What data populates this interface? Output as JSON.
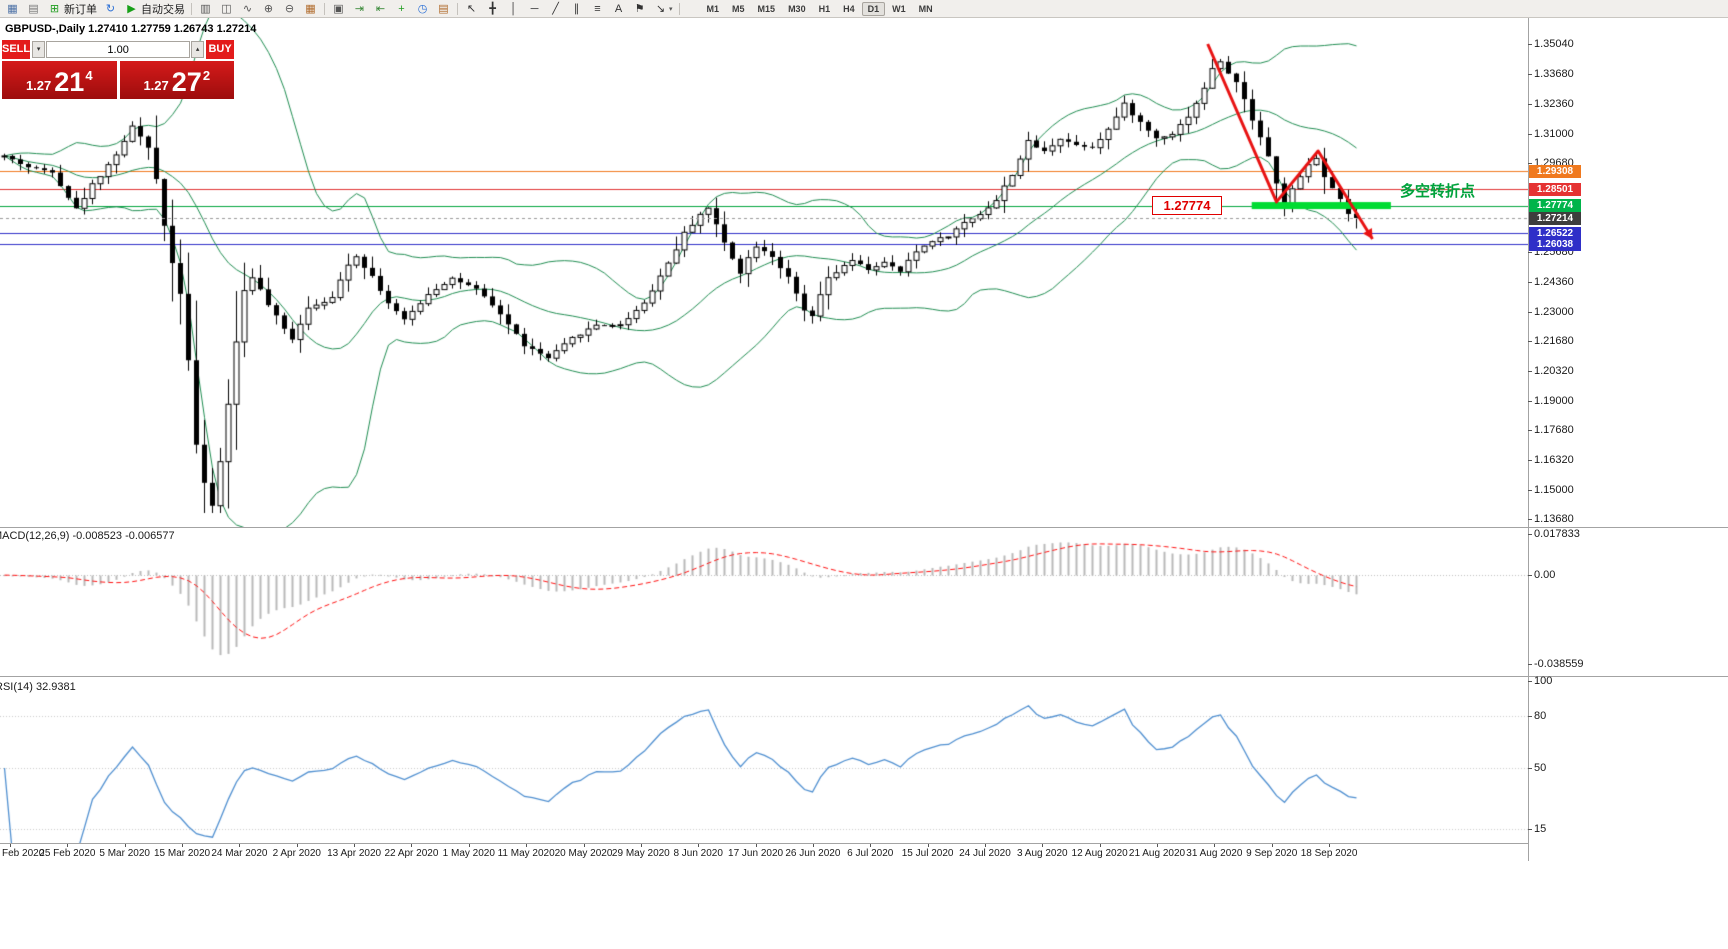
{
  "app": {
    "title": "MetaTrader 4"
  },
  "toolbar": {
    "items": [
      {
        "name": "new-chart-icon",
        "glyph": "▦",
        "color": "#4a6fa5"
      },
      {
        "name": "profiles-icon",
        "glyph": "▤",
        "color": "#777777"
      },
      {
        "name": "new-order-button",
        "glyph": "⊞",
        "color": "#1f9d1f",
        "label": "新订单"
      },
      {
        "name": "sync-icon",
        "glyph": "↻",
        "color": "#2a6fd6"
      },
      {
        "name": "auto-trading-button",
        "glyph": "▶",
        "color": "#18a018",
        "label": "自动交易"
      },
      {
        "name": "separator"
      },
      {
        "name": "bar-chart-icon",
        "glyph": "▥",
        "color": "#555555"
      },
      {
        "name": "candlestick-chart-icon",
        "glyph": "◫",
        "color": "#555555"
      },
      {
        "name": "line-chart-icon",
        "glyph": "∿",
        "color": "#555555"
      },
      {
        "name": "zoom-in-icon",
        "glyph": "⊕",
        "color": "#555555"
      },
      {
        "name": "zoom-out-icon",
        "glyph": "⊖",
        "color": "#555555"
      },
      {
        "name": "tile-windows-icon",
        "glyph": "▦",
        "color": "#b06a2a"
      },
      {
        "name": "separator"
      },
      {
        "name": "cascade-windows-icon",
        "glyph": "▣",
        "color": "#555555"
      },
      {
        "name": "auto-scroll-icon",
        "glyph": "⇥",
        "color": "#3a8a3a"
      },
      {
        "name": "chart-shift-icon",
        "glyph": "⇤",
        "color": "#3a8a3a"
      },
      {
        "name": "add-indicator-icon",
        "glyph": "+",
        "color": "#1f9d1f"
      },
      {
        "name": "periods-icon",
        "glyph": "◷",
        "color": "#2a6fd6"
      },
      {
        "name": "templates-icon",
        "glyph": "▤",
        "color": "#b06a2a"
      },
      {
        "name": "separator"
      },
      {
        "name": "cursor-icon",
        "glyph": "↖",
        "color": "#333333"
      },
      {
        "name": "crosshair-icon",
        "glyph": "╋",
        "color": "#333333"
      },
      {
        "name": "vertical-line-icon",
        "glyph": "│",
        "color": "#333333"
      },
      {
        "name": "horizontal-line-icon",
        "glyph": "─",
        "color": "#333333"
      },
      {
        "name": "trendline-icon",
        "glyph": "╱",
        "color": "#333333"
      },
      {
        "name": "channel-icon",
        "glyph": "∥",
        "color": "#333333"
      },
      {
        "name": "fibonacci-icon",
        "glyph": "≡",
        "color": "#333333"
      },
      {
        "name": "text-icon",
        "glyph": "A",
        "color": "#333333"
      },
      {
        "name": "label-icon",
        "glyph": "⚑",
        "color": "#333333"
      },
      {
        "name": "shapes-dropdown",
        "glyph": "↘",
        "caret": "▾",
        "color": "#333333"
      },
      {
        "name": "separator"
      }
    ],
    "timeframes": [
      "M1",
      "M5",
      "M15",
      "M30",
      "H1",
      "H4",
      "D1",
      "W1",
      "MN"
    ],
    "active_timeframe": "D1"
  },
  "chart": {
    "header": "GBPUSD-,Daily 1.27410 1.27759 1.26743 1.27214",
    "symbol": "GBPUSD-,Daily",
    "open": "1.27410",
    "high": "1.27759",
    "low": "1.26743",
    "close": "1.27214"
  },
  "trade_panel": {
    "sell_label": "SELL",
    "buy_label": "BUY",
    "volume": "1.00",
    "spin_down": "▾",
    "spin_up": "▴",
    "sell_price_main": "1.27",
    "sell_price_big": "21",
    "sell_price_sup": "4",
    "buy_price_main": "1.27",
    "buy_price_big": "27",
    "buy_price_sup": "2"
  },
  "price_axis": {
    "max": 1.3504,
    "min": 1.1368,
    "labels": [
      "1.35040",
      "1.33680",
      "1.32360",
      "1.31000",
      "1.29680",
      "1.25680",
      "1.24360",
      "1.23000",
      "1.21680",
      "1.20320",
      "1.19000",
      "1.17680",
      "1.16320",
      "1.15000",
      "1.13680"
    ],
    "tags": [
      {
        "value": "1.29308",
        "color": "#f0791e"
      },
      {
        "value": "1.28501",
        "color": "#e53333"
      },
      {
        "value": "1.27774",
        "color": "#00b44a"
      },
      {
        "value": "1.27214",
        "color": "#3d3d3d"
      },
      {
        "value": "1.26522",
        "color": "#2f2fc8"
      },
      {
        "value": "1.26038",
        "color": "#2f2fc8"
      }
    ]
  },
  "hlines": [
    {
      "price": 1.29308,
      "color": "#f0791e"
    },
    {
      "price": 1.28501,
      "color": "#e03232"
    },
    {
      "price": 1.27774,
      "color": "#00a53c"
    },
    {
      "price": 1.26522,
      "color": "#2f2fc8"
    },
    {
      "price": 1.26038,
      "color": "#2f2fc8"
    }
  ],
  "bid_line": {
    "price": 1.27214,
    "color": "#9a9a9a",
    "style": "dashed"
  },
  "annotations": {
    "price_label": "1.27774",
    "turning_point_text": "多空转折点",
    "highlight": {
      "bar1": 155.9,
      "bar2": 173.3,
      "price": 1.27774,
      "color": "#00dc32",
      "thickness": 7
    },
    "trend_arrow": {
      "color": "#e81212",
      "width": 3,
      "points": [
        [
          150.4,
          1.3504
        ],
        [
          159,
          1.2794
        ],
        [
          164.2,
          1.3023
        ],
        [
          171,
          1.2627
        ]
      ]
    }
  },
  "colors": {
    "candle_up": "#ffffff",
    "candle_down": "#000000",
    "candle_outline": "#000000",
    "bands": "#1e8c50"
  },
  "macd": {
    "label": "MACD(12,26,9) -0.008523 -0.006577",
    "main_value": -0.008523,
    "signal_value": -0.006577,
    "scale_labels": [
      "0.017833",
      "0.00",
      "-0.038559"
    ],
    "max": 0.017833,
    "min": -0.038559,
    "histogram_color": "#b9b9b9",
    "signal_color": "#ff1010"
  },
  "rsi": {
    "label": "RSI(14) 32.9381",
    "value": 32.9381,
    "scale_labels": [
      "100",
      "80",
      "50",
      "15"
    ],
    "levels": [
      80,
      50,
      15
    ],
    "line_color": "#4f8fd0"
  },
  "time_axis": {
    "labels": [
      "Feb 2020",
      "25 Feb 2020",
      "5 Mar 2020",
      "15 Mar 2020",
      "24 Mar 2020",
      "2 Apr 2020",
      "13 Apr 2020",
      "22 Apr 2020",
      "1 May 2020",
      "11 May 2020",
      "20 May 2020",
      "29 May 2020",
      "8 Jun 2020",
      "17 Jun 2020",
      "26 Jun 2020",
      "6 Jul 2020",
      "15 Jul 2020",
      "24 Jul 2020",
      "3 Aug 2020",
      "12 Aug 2020",
      "21 Aug 2020",
      "31 Aug 2020",
      "9 Sep 2020",
      "18 Sep 2020"
    ]
  },
  "chart_data": {
    "type": "candlestick",
    "symbol": "GBPUSD",
    "timeframe": "Daily",
    "bars": 170,
    "price_range": [
      1.1368,
      1.3504
    ],
    "ohlc_current": {
      "open": 1.2741,
      "high": 1.27759,
      "low": 1.26743,
      "close": 1.27214
    },
    "anchors": [
      [
        0,
        1.3
      ],
      [
        3,
        1.295
      ],
      [
        6,
        1.293
      ],
      [
        9,
        1.276
      ],
      [
        11,
        1.287
      ],
      [
        13,
        1.296
      ],
      [
        15,
        1.306
      ],
      [
        16,
        1.314
      ],
      [
        18,
        1.303
      ],
      [
        19,
        1.29
      ],
      [
        21,
        1.252
      ],
      [
        22,
        1.24
      ],
      [
        23,
        1.21
      ],
      [
        24,
        1.17
      ],
      [
        25,
        1.15
      ],
      [
        26,
        1.143
      ],
      [
        27,
        1.162
      ],
      [
        28,
        1.19
      ],
      [
        29,
        1.215
      ],
      [
        30,
        1.24
      ],
      [
        31,
        1.246
      ],
      [
        33,
        1.233
      ],
      [
        35,
        1.222
      ],
      [
        36,
        1.218
      ],
      [
        38,
        1.232
      ],
      [
        41,
        1.236
      ],
      [
        43,
        1.252
      ],
      [
        44,
        1.255
      ],
      [
        46,
        1.246
      ],
      [
        48,
        1.234
      ],
      [
        50,
        1.226
      ],
      [
        53,
        1.238
      ],
      [
        56,
        1.245
      ],
      [
        59,
        1.24
      ],
      [
        62,
        1.229
      ],
      [
        65,
        1.215
      ],
      [
        68,
        1.209
      ],
      [
        71,
        1.218
      ],
      [
        74,
        1.224
      ],
      [
        77,
        1.224
      ],
      [
        80,
        1.234
      ],
      [
        83,
        1.252
      ],
      [
        85,
        1.265
      ],
      [
        87,
        1.274
      ],
      [
        88,
        1.2765
      ],
      [
        90,
        1.261
      ],
      [
        92,
        1.248
      ],
      [
        94,
        1.26
      ],
      [
        96,
        1.255
      ],
      [
        98,
        1.245
      ],
      [
        100,
        1.23
      ],
      [
        101,
        1.228
      ],
      [
        103,
        1.245
      ],
      [
        106,
        1.253
      ],
      [
        108,
        1.249
      ],
      [
        110,
        1.252
      ],
      [
        112,
        1.248
      ],
      [
        114,
        1.257
      ],
      [
        116,
        1.262
      ],
      [
        118,
        1.264
      ],
      [
        120,
        1.27
      ],
      [
        122,
        1.274
      ],
      [
        124,
        1.28
      ],
      [
        126,
        1.292
      ],
      [
        128,
        1.306
      ],
      [
        130,
        1.302
      ],
      [
        132,
        1.308
      ],
      [
        134,
        1.305
      ],
      [
        136,
        1.304
      ],
      [
        138,
        1.312
      ],
      [
        140,
        1.323
      ],
      [
        142,
        1.315
      ],
      [
        144,
        1.308
      ],
      [
        146,
        1.31
      ],
      [
        148,
        1.318
      ],
      [
        150,
        1.33
      ],
      [
        151,
        1.34
      ],
      [
        152,
        1.342
      ],
      [
        154,
        1.333
      ],
      [
        156,
        1.317
      ],
      [
        158,
        1.3
      ],
      [
        159,
        1.287
      ],
      [
        160,
        1.279
      ],
      [
        162,
        1.29
      ],
      [
        163,
        1.296
      ],
      [
        164,
        1.299
      ],
      [
        165,
        1.29
      ],
      [
        167,
        1.28
      ],
      [
        168,
        1.274
      ],
      [
        169,
        1.2721
      ]
    ],
    "indicators": [
      {
        "name": "Bollinger Bands",
        "period": 20,
        "deviation": 2
      },
      {
        "name": "MACD",
        "fast": 12,
        "slow": 26,
        "signal": 9,
        "current_main": -0.008523,
        "current_signal": -0.006577
      },
      {
        "name": "RSI",
        "period": 14,
        "current": 32.9381
      }
    ]
  }
}
